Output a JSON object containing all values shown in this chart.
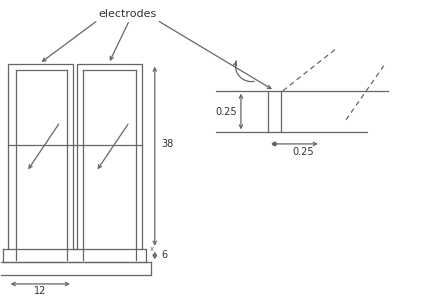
{
  "bg_color": "#ffffff",
  "line_color": "#666666",
  "text_color": "#333333",
  "title": "electrodes",
  "dim_38": "38",
  "dim_6": "6",
  "dim_12": "12",
  "dim_025_v": "0.25",
  "dim_025_h": "0.25"
}
